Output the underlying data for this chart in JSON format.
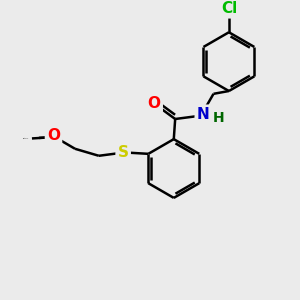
{
  "background_color": "#ebebeb",
  "bond_color": "#000000",
  "bond_width": 1.8,
  "atom_colors": {
    "O": "#ff0000",
    "N": "#0000cc",
    "S": "#cccc00",
    "Cl": "#00bb00",
    "H": "#006600"
  },
  "font_size_atom": 10,
  "fig_size": [
    3.0,
    3.0
  ],
  "dpi": 100
}
